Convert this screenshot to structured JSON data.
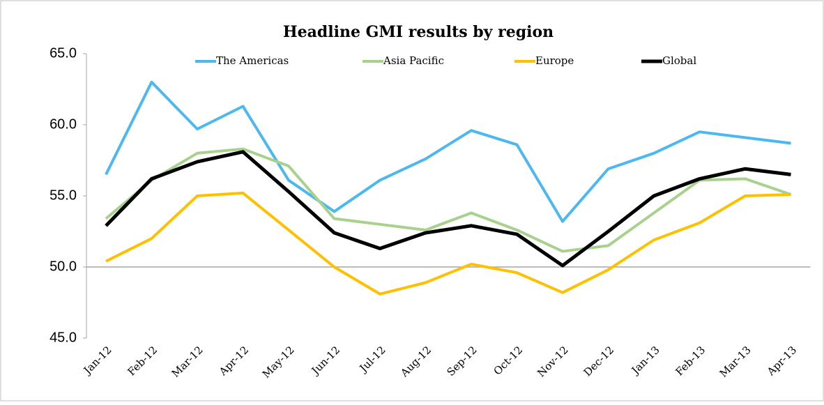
{
  "chart_data": {
    "type": "line",
    "title": "Headline GMI results by region",
    "categories": [
      "Jan-12",
      "Feb-12",
      "Mar-12",
      "Apr-12",
      "May-12",
      "Jun-12",
      "Jul-12",
      "Aug-12",
      "Sep-12",
      "Oct-12",
      "Nov-12",
      "Dec-12",
      "Jan-13",
      "Feb-13",
      "Mar-13",
      "Apr-13"
    ],
    "series": [
      {
        "name": "The Americas",
        "color": "#4db8f0",
        "values": [
          56.5,
          63.0,
          59.7,
          61.3,
          56.1,
          53.9,
          56.1,
          57.6,
          59.6,
          58.6,
          53.2,
          56.9,
          58.0,
          59.5,
          59.1,
          58.7
        ]
      },
      {
        "name": "Asia Pacific",
        "color": "#a9d18e",
        "values": [
          53.4,
          56.1,
          58.0,
          58.3,
          57.1,
          53.4,
          53.0,
          52.6,
          53.8,
          52.6,
          51.1,
          51.5,
          53.8,
          56.1,
          56.2,
          55.1
        ]
      },
      {
        "name": "Europe",
        "color": "#ffc000",
        "values": [
          50.4,
          52.0,
          55.0,
          55.2,
          52.6,
          50.0,
          48.1,
          48.9,
          50.2,
          49.6,
          48.2,
          49.8,
          51.9,
          53.1,
          55.0,
          55.1
        ]
      },
      {
        "name": "Global",
        "color": "#000000",
        "values": [
          52.9,
          56.2,
          57.4,
          58.1,
          55.3,
          52.4,
          51.3,
          52.4,
          52.9,
          52.3,
          50.1,
          52.5,
          55.0,
          56.2,
          56.9,
          56.5
        ]
      }
    ],
    "ylim": [
      45,
      65
    ],
    "yticks": [
      {
        "value": 45,
        "label": "45.0"
      },
      {
        "value": 50,
        "label": "50.0"
      },
      {
        "value": 55,
        "label": "55.0"
      },
      {
        "value": 60,
        "label": "60.0"
      },
      {
        "value": 65,
        "label": "65.0"
      }
    ],
    "x_axis_crosses": 50,
    "grid": false,
    "legend": "top"
  }
}
